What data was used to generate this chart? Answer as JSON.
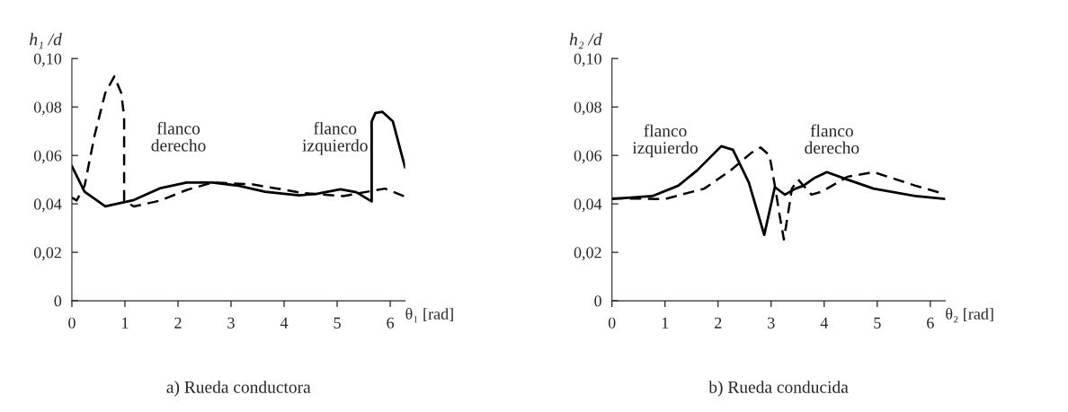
{
  "chart_data": [
    {
      "type": "line",
      "title": "a) Rueda conductora",
      "xlabel": "θ₁ [rad]",
      "ylabel": "h₁ /d",
      "xlim": [
        0,
        6.28
      ],
      "ylim": [
        0,
        0.1
      ],
      "xticks": [
        0,
        1,
        2,
        3,
        4,
        5,
        6
      ],
      "yticks": [
        0,
        {
          "value": 0.02,
          "label": "0,02"
        },
        {
          "value": 0.04,
          "label": "0,04"
        },
        {
          "value": 0.06,
          "label": "0,06"
        },
        {
          "value": 0.08,
          "label": "0,08"
        },
        {
          "value": 0.1,
          "label": "0,10"
        }
      ],
      "grid": false,
      "legend": false,
      "annotations": [
        "flanco\nderecho",
        "flanco\nizquierdo"
      ],
      "series": [
        {
          "color": "#000000",
          "line_style": "solid",
          "x": [
            0,
            0.24,
            0.63,
            1.17,
            1.67,
            2.16,
            2.65,
            3.14,
            3.64,
            4.28,
            4.62,
            5.06,
            5.36,
            5.65,
            5.65,
            5.72,
            5.85,
            6.05,
            6.28
          ],
          "values": [
            0.0556,
            0.045,
            0.039,
            0.0416,
            0.0465,
            0.0488,
            0.0488,
            0.0475,
            0.045,
            0.0435,
            0.0442,
            0.046,
            0.0448,
            0.041,
            0.074,
            0.0775,
            0.078,
            0.074,
            0.055
          ]
        },
        {
          "color": "#000000",
          "line_style": "dashed",
          "x": [
            0,
            0.09,
            0.24,
            0.43,
            0.63,
            0.8,
            0.93,
            0.985,
            0.985,
            1.17,
            1.67,
            2.16,
            2.65,
            3.39,
            4.37,
            5.11,
            5.9,
            6.28
          ],
          "values": [
            0.0426,
            0.0414,
            0.0475,
            0.0685,
            0.0858,
            0.0926,
            0.0858,
            0.076,
            0.0414,
            0.0389,
            0.0414,
            0.0457,
            0.0488,
            0.0481,
            0.0444,
            0.0432,
            0.0463,
            0.043
          ]
        }
      ]
    },
    {
      "type": "line",
      "title": "b) Rueda conducida",
      "xlabel": "θ₂ [rad]",
      "ylabel": "h₂ /d",
      "xlim": [
        0,
        6.28
      ],
      "ylim": [
        0,
        0.1
      ],
      "xticks": [
        0,
        1,
        2,
        3,
        4,
        5,
        6
      ],
      "yticks": [
        0,
        {
          "value": 0.02,
          "label": "0,02"
        },
        {
          "value": 0.04,
          "label": "0,04"
        },
        {
          "value": 0.06,
          "label": "0,06"
        },
        {
          "value": 0.08,
          "label": "0,08"
        },
        {
          "value": 0.1,
          "label": "0,10"
        }
      ],
      "grid": false,
      "legend": false,
      "annotations": [
        "flanco\nizquierdo",
        "flanco\nderecho"
      ],
      "series": [
        {
          "color": "#000000",
          "line_style": "solid",
          "x": [
            0,
            0.76,
            1.25,
            1.6,
            2.06,
            2.28,
            2.58,
            2.87,
            3.07,
            3.26,
            3.46,
            3.61,
            3.8,
            4.05,
            4.44,
            4.93,
            5.72,
            6.28
          ],
          "values": [
            0.042,
            0.0432,
            0.0475,
            0.0537,
            0.0638,
            0.0623,
            0.0488,
            0.0272,
            0.0469,
            0.0438,
            0.0463,
            0.0475,
            0.0505,
            0.0531,
            0.05,
            0.0463,
            0.0432,
            0.042
          ]
        },
        {
          "color": "#000000",
          "line_style": "dashed",
          "x": [
            0,
            1.0,
            1.74,
            2.23,
            2.63,
            2.8,
            2.97,
            3.07,
            3.17,
            3.24,
            3.34,
            3.39,
            3.51,
            3.61,
            3.76,
            3.95,
            4.44,
            4.93,
            5.72,
            6.28
          ],
          "values": [
            0.0423,
            0.042,
            0.0463,
            0.0537,
            0.0611,
            0.0633,
            0.06,
            0.0475,
            0.034,
            0.0253,
            0.0389,
            0.0463,
            0.05,
            0.0475,
            0.0438,
            0.045,
            0.0512,
            0.0531,
            0.0475,
            0.044
          ]
        }
      ]
    }
  ]
}
